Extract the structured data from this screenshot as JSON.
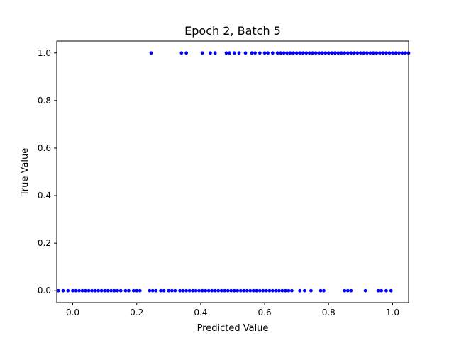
{
  "chart_data": {
    "type": "scatter",
    "title": "Epoch 2, Batch 5",
    "xlabel": "Predicted Value",
    "ylabel": "True Value",
    "xlim": [
      -0.05,
      1.05
    ],
    "ylim": [
      -0.05,
      1.05
    ],
    "xticks": [
      0.0,
      0.2,
      0.4,
      0.6,
      0.8,
      1.0
    ],
    "xtick_labels": [
      "0.0",
      "0.2",
      "0.4",
      "0.6",
      "0.8",
      "1.0"
    ],
    "yticks": [
      0.0,
      0.2,
      0.4,
      0.6,
      0.8,
      1.0
    ],
    "ytick_labels": [
      "0.0",
      "0.2",
      "0.4",
      "0.6",
      "0.8",
      "1.0"
    ],
    "grid": false,
    "marker_color": "#0000ff",
    "series": [
      {
        "points": [
          {
            "x": 0.245,
            "y": 1.0
          },
          {
            "x": 0.34,
            "y": 1.0
          },
          {
            "x": 0.355,
            "y": 1.0
          },
          {
            "x": 0.405,
            "y": 1.0
          },
          {
            "x": 0.43,
            "y": 1.0
          },
          {
            "x": 0.445,
            "y": 1.0
          },
          {
            "x": 0.48,
            "y": 1.0
          },
          {
            "x": 0.49,
            "y": 1.0
          },
          {
            "x": 0.505,
            "y": 1.0
          },
          {
            "x": 0.52,
            "y": 1.0
          },
          {
            "x": 0.54,
            "y": 1.0
          },
          {
            "x": 0.56,
            "y": 1.0
          },
          {
            "x": 0.57,
            "y": 1.0
          },
          {
            "x": 0.585,
            "y": 1.0
          },
          {
            "x": 0.6,
            "y": 1.0
          },
          {
            "x": 0.61,
            "y": 1.0
          },
          {
            "x": 0.625,
            "y": 1.0
          },
          {
            "x": 0.64,
            "y": 1.0
          },
          {
            "x": 0.65,
            "y": 1.0
          },
          {
            "x": 0.66,
            "y": 1.0
          },
          {
            "x": 0.67,
            "y": 1.0
          },
          {
            "x": 0.68,
            "y": 1.0
          },
          {
            "x": 0.69,
            "y": 1.0
          },
          {
            "x": 0.7,
            "y": 1.0
          },
          {
            "x": 0.71,
            "y": 1.0
          },
          {
            "x": 0.72,
            "y": 1.0
          },
          {
            "x": 0.73,
            "y": 1.0
          },
          {
            "x": 0.74,
            "y": 1.0
          },
          {
            "x": 0.75,
            "y": 1.0
          },
          {
            "x": 0.76,
            "y": 1.0
          },
          {
            "x": 0.77,
            "y": 1.0
          },
          {
            "x": 0.78,
            "y": 1.0
          },
          {
            "x": 0.79,
            "y": 1.0
          },
          {
            "x": 0.8,
            "y": 1.0
          },
          {
            "x": 0.81,
            "y": 1.0
          },
          {
            "x": 0.82,
            "y": 1.0
          },
          {
            "x": 0.83,
            "y": 1.0
          },
          {
            "x": 0.84,
            "y": 1.0
          },
          {
            "x": 0.85,
            "y": 1.0
          },
          {
            "x": 0.86,
            "y": 1.0
          },
          {
            "x": 0.87,
            "y": 1.0
          },
          {
            "x": 0.88,
            "y": 1.0
          },
          {
            "x": 0.89,
            "y": 1.0
          },
          {
            "x": 0.9,
            "y": 1.0
          },
          {
            "x": 0.91,
            "y": 1.0
          },
          {
            "x": 0.92,
            "y": 1.0
          },
          {
            "x": 0.93,
            "y": 1.0
          },
          {
            "x": 0.94,
            "y": 1.0
          },
          {
            "x": 0.95,
            "y": 1.0
          },
          {
            "x": 0.96,
            "y": 1.0
          },
          {
            "x": 0.97,
            "y": 1.0
          },
          {
            "x": 0.98,
            "y": 1.0
          },
          {
            "x": 0.99,
            "y": 1.0
          },
          {
            "x": 1.0,
            "y": 1.0
          },
          {
            "x": 1.01,
            "y": 1.0
          },
          {
            "x": 1.02,
            "y": 1.0
          },
          {
            "x": 1.03,
            "y": 1.0
          },
          {
            "x": 1.04,
            "y": 1.0
          },
          {
            "x": 1.05,
            "y": 1.0
          },
          {
            "x": -0.045,
            "y": 0.0
          },
          {
            "x": -0.03,
            "y": 0.0
          },
          {
            "x": -0.015,
            "y": 0.0
          },
          {
            "x": 0.0,
            "y": 0.0
          },
          {
            "x": 0.01,
            "y": 0.0
          },
          {
            "x": 0.02,
            "y": 0.0
          },
          {
            "x": 0.03,
            "y": 0.0
          },
          {
            "x": 0.04,
            "y": 0.0
          },
          {
            "x": 0.05,
            "y": 0.0
          },
          {
            "x": 0.06,
            "y": 0.0
          },
          {
            "x": 0.07,
            "y": 0.0
          },
          {
            "x": 0.08,
            "y": 0.0
          },
          {
            "x": 0.09,
            "y": 0.0
          },
          {
            "x": 0.1,
            "y": 0.0
          },
          {
            "x": 0.11,
            "y": 0.0
          },
          {
            "x": 0.12,
            "y": 0.0
          },
          {
            "x": 0.13,
            "y": 0.0
          },
          {
            "x": 0.14,
            "y": 0.0
          },
          {
            "x": 0.15,
            "y": 0.0
          },
          {
            "x": 0.165,
            "y": 0.0
          },
          {
            "x": 0.175,
            "y": 0.0
          },
          {
            "x": 0.19,
            "y": 0.0
          },
          {
            "x": 0.2,
            "y": 0.0
          },
          {
            "x": 0.21,
            "y": 0.0
          },
          {
            "x": 0.24,
            "y": 0.0
          },
          {
            "x": 0.25,
            "y": 0.0
          },
          {
            "x": 0.26,
            "y": 0.0
          },
          {
            "x": 0.275,
            "y": 0.0
          },
          {
            "x": 0.285,
            "y": 0.0
          },
          {
            "x": 0.3,
            "y": 0.0
          },
          {
            "x": 0.31,
            "y": 0.0
          },
          {
            "x": 0.32,
            "y": 0.0
          },
          {
            "x": 0.335,
            "y": 0.0
          },
          {
            "x": 0.345,
            "y": 0.0
          },
          {
            "x": 0.355,
            "y": 0.0
          },
          {
            "x": 0.365,
            "y": 0.0
          },
          {
            "x": 0.375,
            "y": 0.0
          },
          {
            "x": 0.385,
            "y": 0.0
          },
          {
            "x": 0.395,
            "y": 0.0
          },
          {
            "x": 0.405,
            "y": 0.0
          },
          {
            "x": 0.415,
            "y": 0.0
          },
          {
            "x": 0.425,
            "y": 0.0
          },
          {
            "x": 0.435,
            "y": 0.0
          },
          {
            "x": 0.445,
            "y": 0.0
          },
          {
            "x": 0.455,
            "y": 0.0
          },
          {
            "x": 0.465,
            "y": 0.0
          },
          {
            "x": 0.475,
            "y": 0.0
          },
          {
            "x": 0.485,
            "y": 0.0
          },
          {
            "x": 0.495,
            "y": 0.0
          },
          {
            "x": 0.505,
            "y": 0.0
          },
          {
            "x": 0.515,
            "y": 0.0
          },
          {
            "x": 0.525,
            "y": 0.0
          },
          {
            "x": 0.535,
            "y": 0.0
          },
          {
            "x": 0.545,
            "y": 0.0
          },
          {
            "x": 0.555,
            "y": 0.0
          },
          {
            "x": 0.565,
            "y": 0.0
          },
          {
            "x": 0.575,
            "y": 0.0
          },
          {
            "x": 0.585,
            "y": 0.0
          },
          {
            "x": 0.595,
            "y": 0.0
          },
          {
            "x": 0.605,
            "y": 0.0
          },
          {
            "x": 0.615,
            "y": 0.0
          },
          {
            "x": 0.625,
            "y": 0.0
          },
          {
            "x": 0.635,
            "y": 0.0
          },
          {
            "x": 0.645,
            "y": 0.0
          },
          {
            "x": 0.655,
            "y": 0.0
          },
          {
            "x": 0.665,
            "y": 0.0
          },
          {
            "x": 0.675,
            "y": 0.0
          },
          {
            "x": 0.685,
            "y": 0.0
          },
          {
            "x": 0.71,
            "y": 0.0
          },
          {
            "x": 0.725,
            "y": 0.0
          },
          {
            "x": 0.745,
            "y": 0.0
          },
          {
            "x": 0.775,
            "y": 0.0
          },
          {
            "x": 0.785,
            "y": 0.0
          },
          {
            "x": 0.85,
            "y": 0.0
          },
          {
            "x": 0.86,
            "y": 0.0
          },
          {
            "x": 0.87,
            "y": 0.0
          },
          {
            "x": 0.915,
            "y": 0.0
          },
          {
            "x": 0.955,
            "y": 0.0
          },
          {
            "x": 0.965,
            "y": 0.0
          },
          {
            "x": 0.98,
            "y": 0.0
          },
          {
            "x": 0.995,
            "y": 0.0
          }
        ]
      }
    ]
  }
}
